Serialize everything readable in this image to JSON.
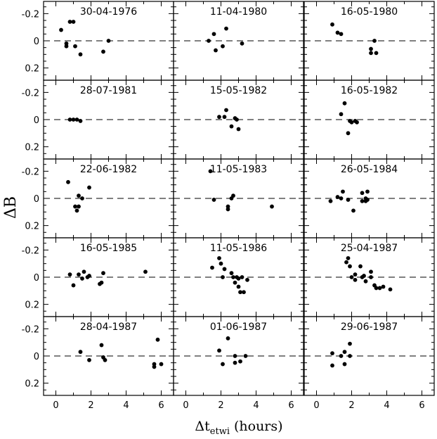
{
  "chart_data": {
    "type": "scatter",
    "layout": "grid-5x3",
    "xlabel": "Δt",
    "xlabel_subscript": "etwi",
    "xlabel_suffix": "(hours)",
    "ylabel": "ΔB",
    "xlim": [
      -0.7,
      6.7
    ],
    "ylim": [
      0.29,
      -0.29
    ],
    "y_inverted": true,
    "reference_line": {
      "y": 0,
      "style": "dashed"
    },
    "x_ticks": [
      0,
      2,
      4,
      6
    ],
    "x_tick_labels": [
      "0",
      "2",
      "4",
      "6"
    ],
    "y_ticks": [
      -0.2,
      0,
      0.2
    ],
    "y_tick_labels": [
      "-0.2",
      "0",
      "0.2"
    ],
    "panels": [
      {
        "title": "30-04-1976",
        "points": [
          [
            0.3,
            -0.08
          ],
          [
            0.6,
            0.02
          ],
          [
            0.6,
            0.04
          ],
          [
            0.8,
            -0.14
          ],
          [
            1.0,
            -0.14
          ],
          [
            1.1,
            0.04
          ],
          [
            1.4,
            0.1
          ],
          [
            2.7,
            0.08
          ],
          [
            3.0,
            0.0
          ]
        ]
      },
      {
        "title": "11-04-1980",
        "points": [
          [
            1.3,
            0.0
          ],
          [
            1.6,
            -0.05
          ],
          [
            1.7,
            0.07
          ],
          [
            2.1,
            0.04
          ],
          [
            2.3,
            -0.09
          ],
          [
            3.2,
            0.02
          ]
        ]
      },
      {
        "title": "16-05-1980",
        "points": [
          [
            0.9,
            -0.12
          ],
          [
            1.2,
            -0.06
          ],
          [
            1.4,
            -0.05
          ],
          [
            3.1,
            0.06
          ],
          [
            3.1,
            0.09
          ],
          [
            3.3,
            0.0
          ],
          [
            3.4,
            0.09
          ]
        ]
      },
      {
        "title": "28-07-1981",
        "points": [
          [
            0.8,
            0.0
          ],
          [
            1.0,
            0.0
          ],
          [
            1.2,
            0.0
          ],
          [
            1.4,
            0.01
          ]
        ]
      },
      {
        "title": "15-05-1982",
        "points": [
          [
            1.9,
            -0.02
          ],
          [
            2.2,
            -0.02
          ],
          [
            2.3,
            -0.07
          ],
          [
            2.6,
            0.05
          ],
          [
            2.8,
            -0.01
          ],
          [
            2.9,
            0.0
          ],
          [
            3.0,
            0.07
          ]
        ]
      },
      {
        "title": "16-05-1982",
        "points": [
          [
            1.4,
            -0.04
          ],
          [
            1.6,
            -0.12
          ],
          [
            1.8,
            0.1
          ],
          [
            1.9,
            0.01
          ],
          [
            2.0,
            0.02
          ],
          [
            2.2,
            0.01
          ],
          [
            2.3,
            0.02
          ]
        ]
      },
      {
        "title": "22-06-1982",
        "points": [
          [
            0.7,
            -0.12
          ],
          [
            1.1,
            0.06
          ],
          [
            1.2,
            0.09
          ],
          [
            1.3,
            -0.02
          ],
          [
            1.3,
            0.06
          ],
          [
            1.5,
            0.0
          ],
          [
            1.9,
            -0.08
          ]
        ]
      },
      {
        "title": "11-05-1983",
        "points": [
          [
            1.4,
            -0.2
          ],
          [
            1.6,
            0.01
          ],
          [
            2.4,
            0.06
          ],
          [
            2.4,
            0.08
          ],
          [
            2.6,
            0.0
          ],
          [
            2.7,
            -0.02
          ],
          [
            4.9,
            0.06
          ]
        ]
      },
      {
        "title": "26-05-1984",
        "points": [
          [
            0.8,
            0.02
          ],
          [
            1.2,
            -0.01
          ],
          [
            1.4,
            0.0
          ],
          [
            1.5,
            -0.05
          ],
          [
            1.8,
            0.01
          ],
          [
            2.1,
            0.09
          ],
          [
            2.6,
            -0.04
          ],
          [
            2.6,
            0.02
          ],
          [
            2.8,
            0.0
          ],
          [
            2.8,
            0.02
          ],
          [
            2.9,
            -0.05
          ],
          [
            2.9,
            0.01
          ]
        ]
      },
      {
        "title": "16-05-1985",
        "points": [
          [
            0.8,
            -0.02
          ],
          [
            1.0,
            0.06
          ],
          [
            1.3,
            -0.02
          ],
          [
            1.5,
            0.01
          ],
          [
            1.6,
            -0.04
          ],
          [
            1.8,
            0.0
          ],
          [
            1.9,
            -0.01
          ],
          [
            2.5,
            0.05
          ],
          [
            2.6,
            0.04
          ],
          [
            2.7,
            -0.03
          ],
          [
            5.1,
            -0.04
          ]
        ]
      },
      {
        "title": "11-05-1986",
        "points": [
          [
            1.5,
            -0.07
          ],
          [
            1.9,
            -0.14
          ],
          [
            2.0,
            -0.1
          ],
          [
            2.1,
            0.0
          ],
          [
            2.2,
            -0.06
          ],
          [
            2.6,
            -0.03
          ],
          [
            2.7,
            0.0
          ],
          [
            2.8,
            0.04
          ],
          [
            2.9,
            0.0
          ],
          [
            3.0,
            0.07
          ],
          [
            3.0,
            0.01
          ],
          [
            3.1,
            0.11
          ],
          [
            3.2,
            0.0
          ],
          [
            3.3,
            0.11
          ],
          [
            3.5,
            0.02
          ]
        ]
      },
      {
        "title": "25-04-1987",
        "points": [
          [
            1.7,
            -0.11
          ],
          [
            1.8,
            -0.14
          ],
          [
            1.9,
            -0.08
          ],
          [
            2.0,
            0.0
          ],
          [
            2.2,
            0.02
          ],
          [
            2.2,
            -0.02
          ],
          [
            2.5,
            -0.08
          ],
          [
            2.6,
            0.0
          ],
          [
            2.7,
            -0.01
          ],
          [
            2.8,
            0.03
          ],
          [
            3.1,
            0.0
          ],
          [
            3.1,
            -0.04
          ],
          [
            3.3,
            0.06
          ],
          [
            3.4,
            0.08
          ],
          [
            3.6,
            0.08
          ],
          [
            3.8,
            0.07
          ],
          [
            4.2,
            0.09
          ]
        ]
      },
      {
        "title": "28-04-1987",
        "points": [
          [
            1.4,
            -0.03
          ],
          [
            1.9,
            0.03
          ],
          [
            2.6,
            -0.08
          ],
          [
            2.7,
            0.01
          ],
          [
            2.8,
            0.03
          ],
          [
            5.6,
            0.06
          ],
          [
            5.6,
            0.08
          ],
          [
            5.8,
            -0.12
          ],
          [
            6.0,
            0.06
          ]
        ]
      },
      {
        "title": "01-06-1987",
        "points": [
          [
            1.9,
            -0.04
          ],
          [
            2.1,
            0.06
          ],
          [
            2.4,
            -0.13
          ],
          [
            2.8,
            0.05
          ],
          [
            2.8,
            0.0
          ],
          [
            3.1,
            0.04
          ],
          [
            3.4,
            0.0
          ]
        ]
      },
      {
        "title": "29-06-1987",
        "points": [
          [
            0.9,
            0.07
          ],
          [
            0.9,
            -0.02
          ],
          [
            1.4,
            0.0
          ],
          [
            1.6,
            -0.03
          ],
          [
            1.6,
            0.06
          ],
          [
            1.9,
            -0.09
          ],
          [
            1.9,
            0.0
          ]
        ]
      }
    ]
  }
}
